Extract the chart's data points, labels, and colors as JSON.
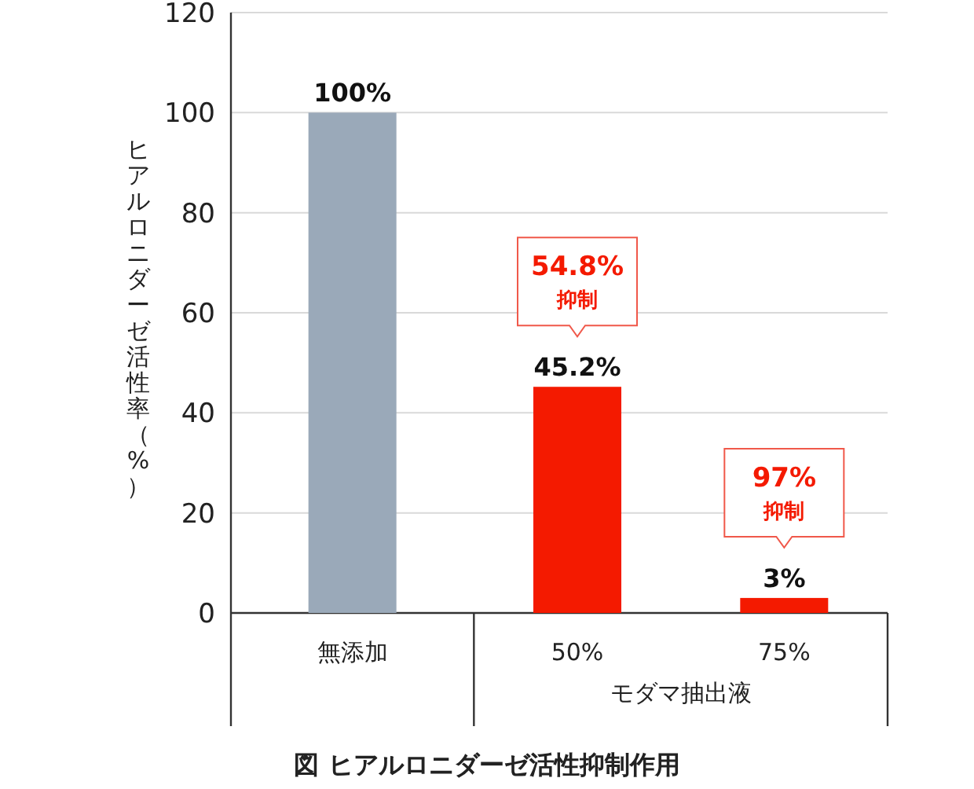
{
  "chart_data": {
    "type": "bar",
    "title": "図 ヒアルロニダーゼ活性抑制作用",
    "ylabel": "ヒアルロニダーゼ活性率（%）",
    "xlabel": "モダマ抽出液",
    "categories": [
      "無添加",
      "50%",
      "75%"
    ],
    "values": [
      100,
      45.2,
      3
    ],
    "colors": [
      "#9aa9b9",
      "#f41a00",
      "#f41a00"
    ],
    "value_labels": [
      "100%",
      "45.2%",
      "3%"
    ],
    "annotations": [
      {
        "text": "54.8%\n抑制",
        "x": "50%",
        "y": 45.2
      },
      {
        "text": "97%\n抑制",
        "x": "75%",
        "y": 3
      }
    ],
    "ylim": [
      0,
      120
    ],
    "yticks": [
      0,
      20,
      40,
      60,
      80,
      100,
      120
    ],
    "grid": "y"
  }
}
